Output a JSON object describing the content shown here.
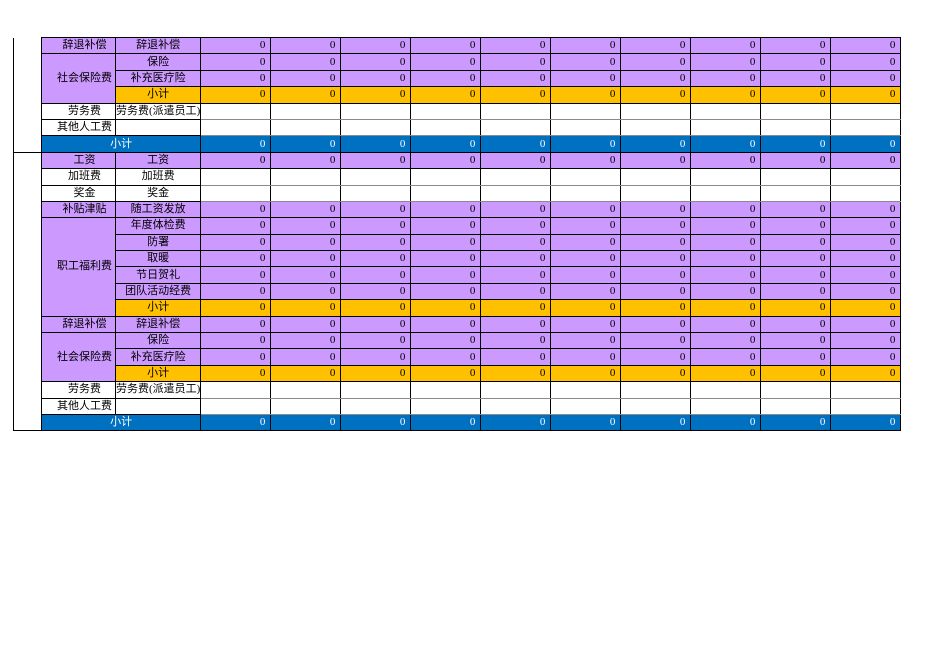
{
  "table": {
    "colors": {
      "purple": "#CC99FF",
      "yellow": "#FFC000",
      "blue": "#0070C0",
      "border": "#000000",
      "blue_row_text": "#FFFFFF",
      "white_row_gridline": "#8A8A8A"
    },
    "num_value_columns": 10,
    "sections": [
      {
        "name": "upper-partial-section",
        "hide_spacer_top_border": true,
        "rows": [
          {
            "b": {
              "text": "辞退补偿",
              "rowspan": 1,
              "fill": "purple"
            },
            "c": {
              "text": "辞退补偿",
              "fill": "purple"
            },
            "fill": "purple",
            "values": [
              "0",
              "0",
              "0",
              "0",
              "0",
              "0",
              "0",
              "0",
              "0",
              "0"
            ]
          },
          {
            "b": {
              "text": "社会保险费",
              "rowspan": 3,
              "fill": "purple"
            },
            "c": {
              "text": "保险",
              "fill": "purple"
            },
            "fill": "purple",
            "values": [
              "0",
              "0",
              "0",
              "0",
              "0",
              "0",
              "0",
              "0",
              "0",
              "0"
            ]
          },
          {
            "c": {
              "text": "补充医疗险",
              "fill": "purple"
            },
            "fill": "purple",
            "values": [
              "0",
              "0",
              "0",
              "0",
              "0",
              "0",
              "0",
              "0",
              "0",
              "0"
            ]
          },
          {
            "c": {
              "text": "小计",
              "fill": "yellow"
            },
            "fill": "yellow",
            "values": [
              "0",
              "0",
              "0",
              "0",
              "0",
              "0",
              "0",
              "0",
              "0",
              "0"
            ]
          },
          {
            "b": {
              "text": "劳务费",
              "rowspan": 1,
              "fill": "white"
            },
            "c": {
              "text": "劳务费(派遣员工)",
              "fill": "white"
            },
            "fill": "white",
            "values": [
              "",
              "",
              "",
              "",
              "",
              "",
              "",
              "",
              "",
              ""
            ]
          },
          {
            "b": {
              "text": "其他人工费",
              "rowspan": 1,
              "fill": "white"
            },
            "c": {
              "text": "",
              "fill": "white"
            },
            "fill": "white",
            "values": [
              "",
              "",
              "",
              "",
              "",
              "",
              "",
              "",
              "",
              ""
            ]
          },
          {
            "type": "subtotal",
            "label": "小计",
            "fill": "blue",
            "values": [
              "0",
              "0",
              "0",
              "0",
              "0",
              "0",
              "0",
              "0",
              "0",
              "0"
            ]
          }
        ]
      },
      {
        "name": "lower-full-section",
        "hide_spacer_top_border": false,
        "rows": [
          {
            "b": {
              "text": "工资",
              "rowspan": 1,
              "fill": "purple"
            },
            "c": {
              "text": "工资",
              "fill": "purple"
            },
            "fill": "purple",
            "values": [
              "0",
              "0",
              "0",
              "0",
              "0",
              "0",
              "0",
              "0",
              "0",
              "0"
            ]
          },
          {
            "b": {
              "text": "加班费",
              "rowspan": 1,
              "fill": "white"
            },
            "c": {
              "text": "加班费",
              "fill": "white"
            },
            "fill": "white",
            "values": [
              "",
              "",
              "",
              "",
              "",
              "",
              "",
              "",
              "",
              ""
            ]
          },
          {
            "b": {
              "text": "奖金",
              "rowspan": 1,
              "fill": "white"
            },
            "c": {
              "text": "奖金",
              "fill": "white"
            },
            "fill": "white",
            "values": [
              "",
              "",
              "",
              "",
              "",
              "",
              "",
              "",
              "",
              ""
            ]
          },
          {
            "b": {
              "text": "补贴津贴",
              "rowspan": 1,
              "fill": "purple"
            },
            "c": {
              "text": "随工资发放",
              "fill": "purple"
            },
            "fill": "purple",
            "values": [
              "0",
              "0",
              "0",
              "0",
              "0",
              "0",
              "0",
              "0",
              "0",
              "0"
            ]
          },
          {
            "b": {
              "text": "职工福利费",
              "rowspan": 6,
              "fill": "purple"
            },
            "c": {
              "text": "年度体检费",
              "fill": "purple"
            },
            "fill": "purple",
            "values": [
              "0",
              "0",
              "0",
              "0",
              "0",
              "0",
              "0",
              "0",
              "0",
              "0"
            ]
          },
          {
            "c": {
              "text": "防署",
              "fill": "purple"
            },
            "fill": "purple",
            "values": [
              "0",
              "0",
              "0",
              "0",
              "0",
              "0",
              "0",
              "0",
              "0",
              "0"
            ]
          },
          {
            "c": {
              "text": "取暖",
              "fill": "purple"
            },
            "fill": "purple",
            "values": [
              "0",
              "0",
              "0",
              "0",
              "0",
              "0",
              "0",
              "0",
              "0",
              "0"
            ]
          },
          {
            "c": {
              "text": "节日贺礼",
              "fill": "purple"
            },
            "fill": "purple",
            "values": [
              "0",
              "0",
              "0",
              "0",
              "0",
              "0",
              "0",
              "0",
              "0",
              "0"
            ]
          },
          {
            "c": {
              "text": "团队活动经费",
              "fill": "purple"
            },
            "fill": "purple",
            "values": [
              "0",
              "0",
              "0",
              "0",
              "0",
              "0",
              "0",
              "0",
              "0",
              "0"
            ]
          },
          {
            "c": {
              "text": "小计",
              "fill": "yellow"
            },
            "fill": "yellow",
            "values": [
              "0",
              "0",
              "0",
              "0",
              "0",
              "0",
              "0",
              "0",
              "0",
              "0"
            ]
          },
          {
            "b": {
              "text": "辞退补偿",
              "rowspan": 1,
              "fill": "purple"
            },
            "c": {
              "text": "辞退补偿",
              "fill": "purple"
            },
            "fill": "purple",
            "values": [
              "0",
              "0",
              "0",
              "0",
              "0",
              "0",
              "0",
              "0",
              "0",
              "0"
            ]
          },
          {
            "b": {
              "text": "社会保险费",
              "rowspan": 3,
              "fill": "purple"
            },
            "c": {
              "text": "保险",
              "fill": "purple"
            },
            "fill": "purple",
            "values": [
              "0",
              "0",
              "0",
              "0",
              "0",
              "0",
              "0",
              "0",
              "0",
              "0"
            ]
          },
          {
            "c": {
              "text": "补充医疗险",
              "fill": "purple"
            },
            "fill": "purple",
            "values": [
              "0",
              "0",
              "0",
              "0",
              "0",
              "0",
              "0",
              "0",
              "0",
              "0"
            ]
          },
          {
            "c": {
              "text": "小计",
              "fill": "yellow"
            },
            "fill": "yellow",
            "values": [
              "0",
              "0",
              "0",
              "0",
              "0",
              "0",
              "0",
              "0",
              "0",
              "0"
            ]
          },
          {
            "b": {
              "text": "劳务费",
              "rowspan": 1,
              "fill": "white"
            },
            "c": {
              "text": "劳务费(派遣员工)",
              "fill": "white"
            },
            "fill": "white",
            "values": [
              "",
              "",
              "",
              "",
              "",
              "",
              "",
              "",
              "",
              ""
            ]
          },
          {
            "b": {
              "text": "其他人工费",
              "rowspan": 1,
              "fill": "white"
            },
            "c": {
              "text": "",
              "fill": "white"
            },
            "fill": "white",
            "values": [
              "",
              "",
              "",
              "",
              "",
              "",
              "",
              "",
              "",
              ""
            ]
          },
          {
            "type": "subtotal",
            "label": "小计",
            "fill": "blue",
            "values": [
              "0",
              "0",
              "0",
              "0",
              "0",
              "0",
              "0",
              "0",
              "0",
              "0"
            ]
          }
        ]
      }
    ],
    "column_widths": {
      "spacer": 28,
      "category": 74,
      "subcategory": 84,
      "value": 70
    }
  }
}
